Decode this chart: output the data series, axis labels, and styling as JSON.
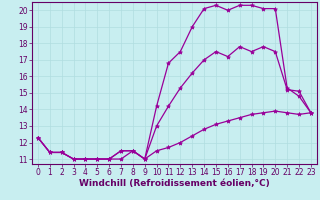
{
  "xlabel": "Windchill (Refroidissement éolien,°C)",
  "bg_color": "#c8eef0",
  "line_color": "#990099",
  "grid_color": "#b0dde0",
  "axis_color": "#660066",
  "spine_color": "#660066",
  "xlim": [
    -0.5,
    23.5
  ],
  "ylim": [
    10.7,
    20.5
  ],
  "xticks": [
    0,
    1,
    2,
    3,
    4,
    5,
    6,
    7,
    8,
    9,
    10,
    11,
    12,
    13,
    14,
    15,
    16,
    17,
    18,
    19,
    20,
    21,
    22,
    23
  ],
  "yticks": [
    11,
    12,
    13,
    14,
    15,
    16,
    17,
    18,
    19,
    20
  ],
  "line1_x": [
    0,
    1,
    2,
    3,
    4,
    5,
    6,
    7,
    8,
    9,
    10,
    11,
    12,
    13,
    14,
    15,
    16,
    17,
    18,
    19,
    20,
    21,
    22,
    23
  ],
  "line1_y": [
    12.3,
    11.4,
    11.4,
    11.0,
    11.0,
    11.0,
    11.0,
    11.0,
    11.5,
    11.0,
    14.2,
    16.8,
    17.5,
    19.0,
    20.1,
    20.3,
    20.0,
    20.3,
    20.3,
    20.1,
    20.1,
    15.3,
    14.8,
    13.8
  ],
  "line2_x": [
    0,
    1,
    2,
    3,
    4,
    5,
    6,
    7,
    8,
    9,
    10,
    11,
    12,
    13,
    14,
    15,
    16,
    17,
    18,
    19,
    20,
    21,
    22,
    23
  ],
  "line2_y": [
    12.3,
    11.4,
    11.4,
    11.0,
    11.0,
    11.0,
    11.0,
    11.5,
    11.5,
    11.0,
    13.0,
    14.2,
    15.3,
    16.2,
    17.0,
    17.5,
    17.2,
    17.8,
    17.5,
    17.8,
    17.5,
    15.2,
    15.1,
    13.8
  ],
  "line3_x": [
    0,
    1,
    2,
    3,
    4,
    5,
    6,
    7,
    8,
    9,
    10,
    11,
    12,
    13,
    14,
    15,
    16,
    17,
    18,
    19,
    20,
    21,
    22,
    23
  ],
  "line3_y": [
    12.3,
    11.4,
    11.4,
    11.0,
    11.0,
    11.0,
    11.0,
    11.5,
    11.5,
    11.0,
    11.5,
    11.7,
    12.0,
    12.4,
    12.8,
    13.1,
    13.3,
    13.5,
    13.7,
    13.8,
    13.9,
    13.8,
    13.7,
    13.8
  ],
  "marker": "*",
  "markersize": 3,
  "linewidth": 0.9,
  "fontsize_tick": 5.5,
  "fontsize_xlabel": 6.5
}
